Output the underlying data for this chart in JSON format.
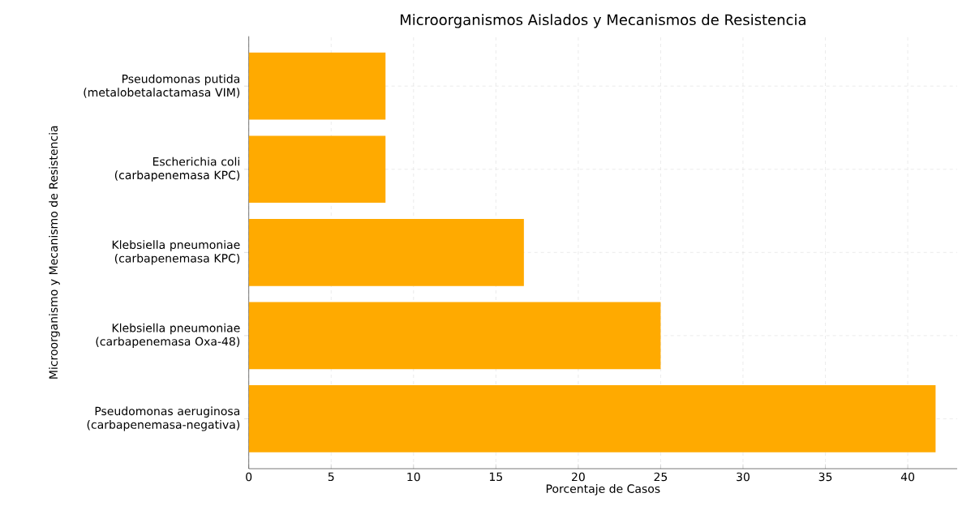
{
  "chart_data": {
    "type": "bar",
    "orientation": "horizontal",
    "title": "Microorganismos Aislados y Mecanismos de Resistencia",
    "xlabel": "Porcentaje de Casos",
    "ylabel": "Microorganismo y Mecanismo de Resistencia",
    "categories": [
      "Pseudomonas putida (metalobetalactamasa VIM)",
      "Escherichia coli (carbapenemasa KPC)",
      "Klebsiella pneumoniae (carbapenemasa KPC)",
      "Klebsiella pneumoniae (carbapenemasa Oxa-48)",
      "Pseudomonas aeruginosa (carbapenemasa-negativa)"
    ],
    "values": [
      8.3,
      8.3,
      16.7,
      25,
      41.7
    ],
    "color": "#ffaa00",
    "xlim": [
      0,
      43
    ],
    "xticks": [
      0,
      5,
      10,
      15,
      20,
      25,
      30,
      35,
      40
    ],
    "grid": true
  }
}
